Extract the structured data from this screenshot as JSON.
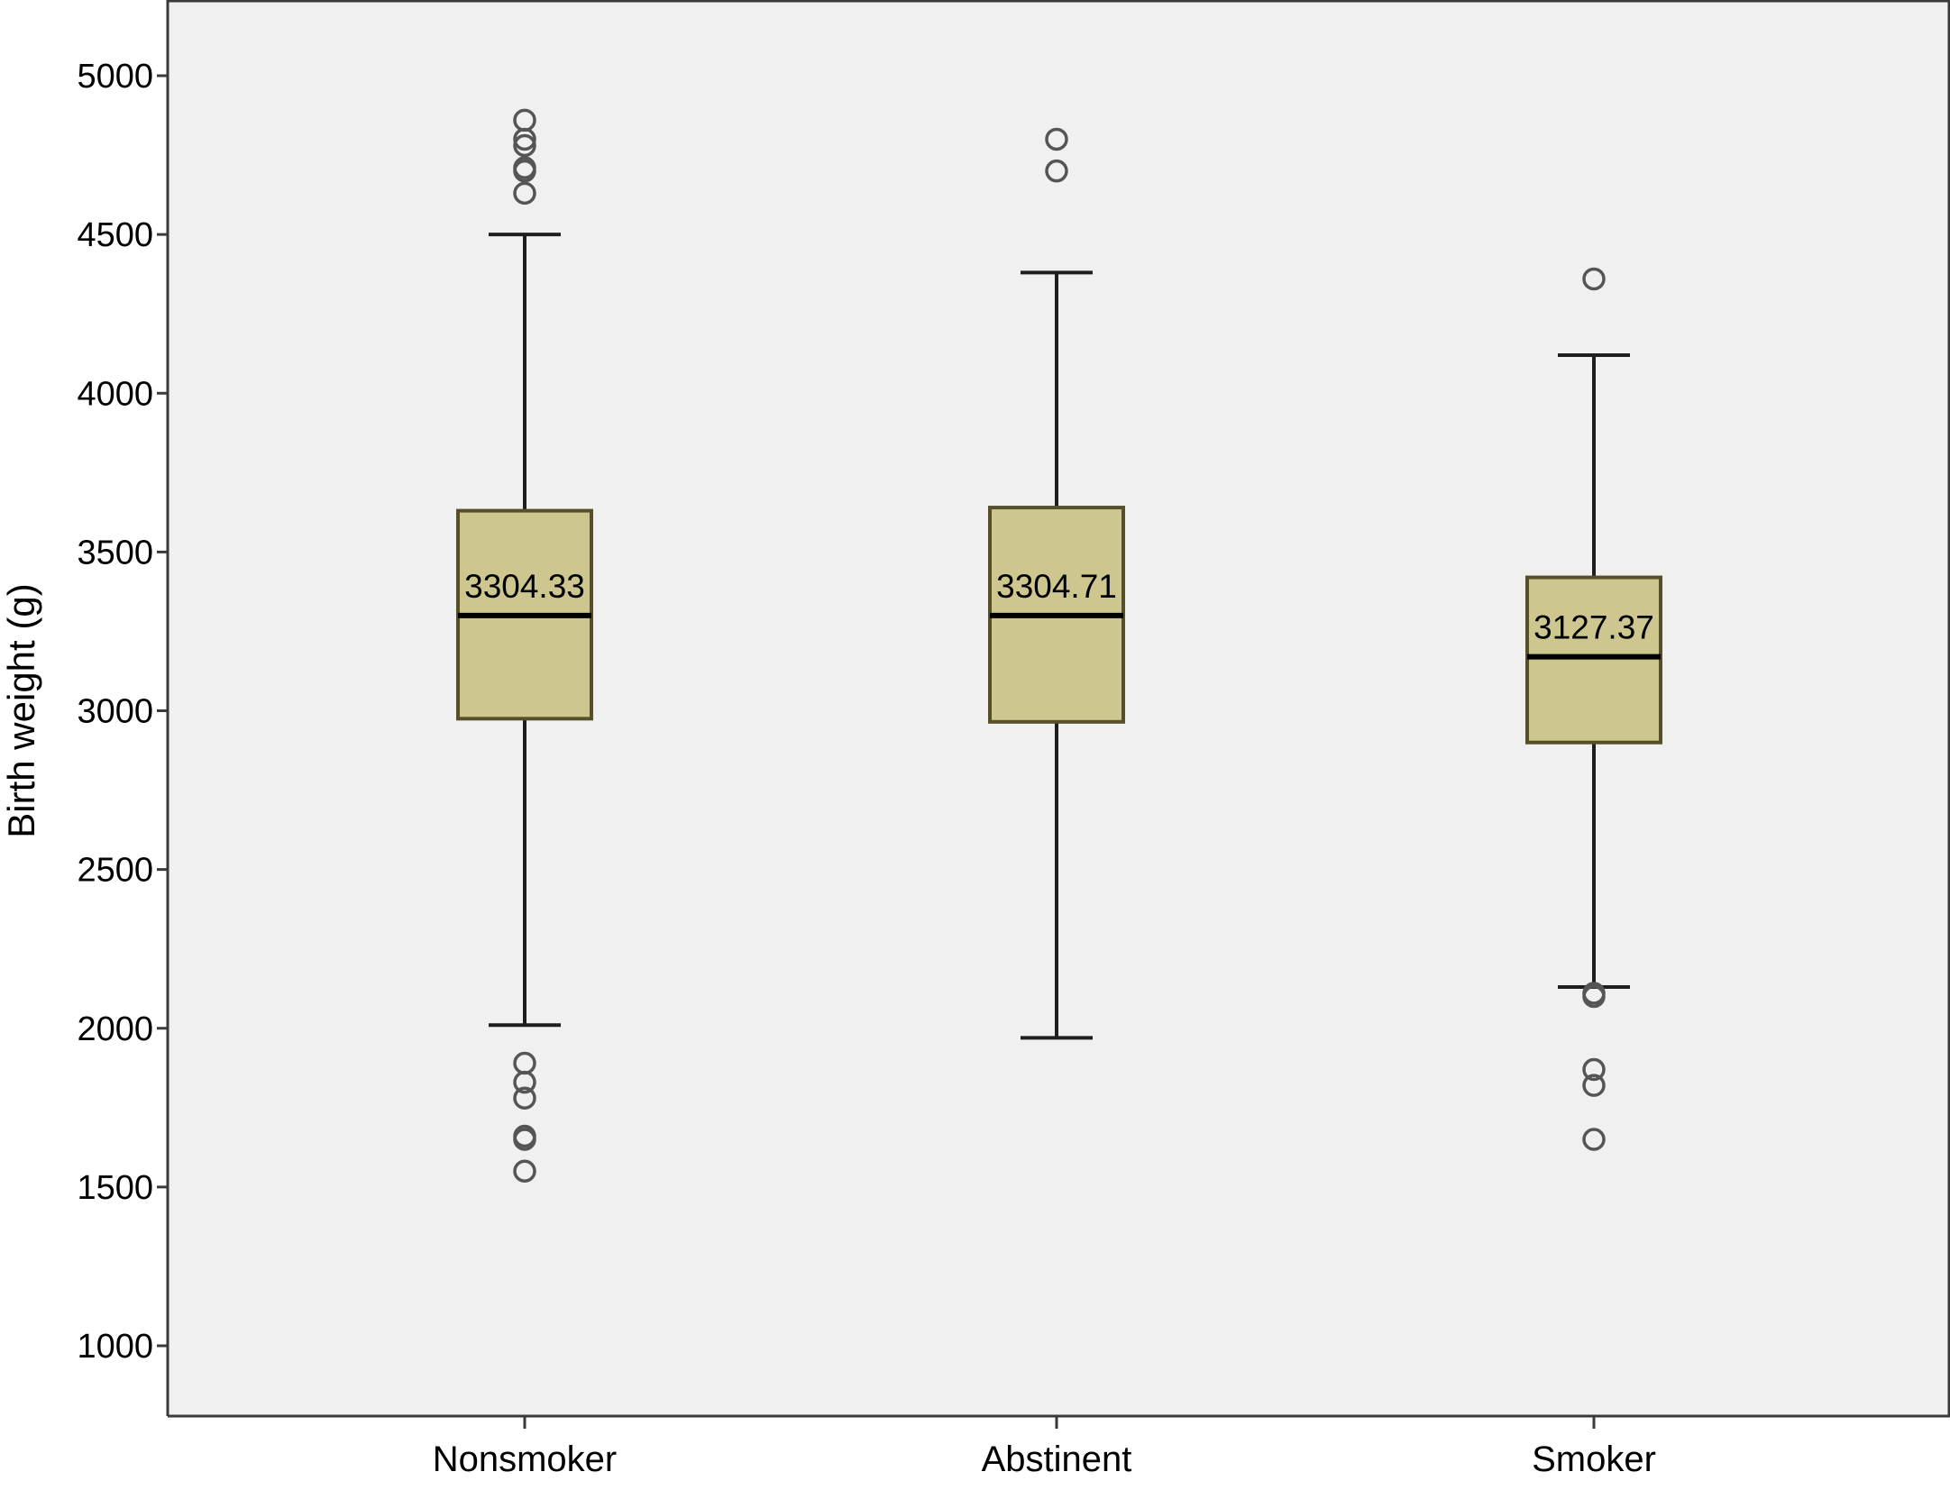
{
  "chart_data": {
    "type": "boxplot",
    "title": "",
    "xlabel": "",
    "ylabel": "Birth weight (g)",
    "ylim": [
      750,
      5230
    ],
    "yticks": [
      1000,
      1500,
      2000,
      2500,
      3000,
      3500,
      4000,
      4500,
      5000
    ],
    "grid": false,
    "legend": "none",
    "box_color": "#CDC68E",
    "box_stroke": "#55502A",
    "plot_background": "#F0F0F0",
    "categories": [
      "Nonsmoker",
      "Abstinent",
      "Smoker"
    ],
    "boxes": [
      {
        "category": "Nonsmoker",
        "whisker_low": 2010,
        "q1": 2975,
        "median": 3300,
        "q3": 3630,
        "whisker_high": 4500,
        "label": "3304.33",
        "outliers": [
          4860,
          4800,
          4780,
          4710,
          4700,
          4630,
          1890,
          1830,
          1780,
          1660,
          1650,
          1550
        ]
      },
      {
        "category": "Abstinent",
        "whisker_low": 1970,
        "q1": 2965,
        "median": 3300,
        "q3": 3640,
        "whisker_high": 4380,
        "label": "3304.71",
        "outliers": [
          4800,
          4700
        ]
      },
      {
        "category": "Smoker",
        "whisker_low": 2130,
        "q1": 2900,
        "median": 3170,
        "q3": 3420,
        "whisker_high": 4120,
        "label": "3127.37",
        "outliers": [
          4360,
          2110,
          2100,
          1870,
          1820,
          1650
        ]
      }
    ]
  }
}
